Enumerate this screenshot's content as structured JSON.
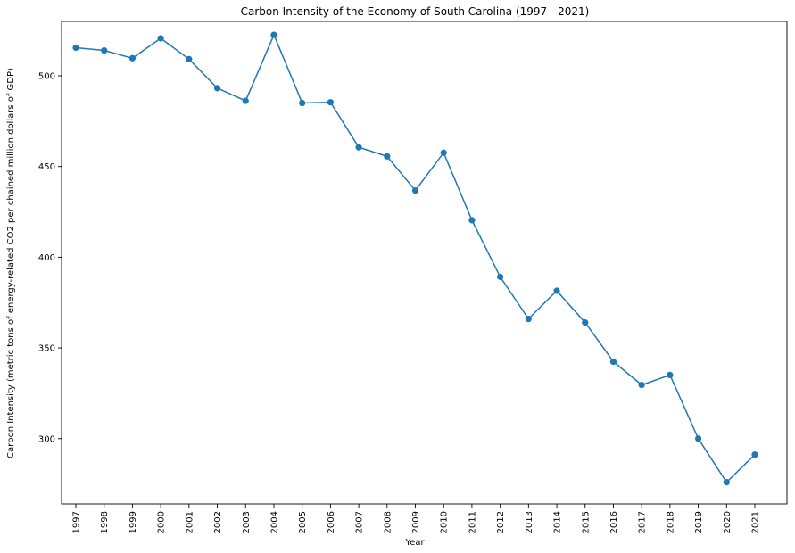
{
  "chart_data": {
    "type": "line",
    "title": "Carbon Intensity of the Economy of South Carolina (1997 - 2021)",
    "xlabel": "Year",
    "ylabel": "Carbon Intensity (metric tons of energy-related CO2 per chained million dollars of GDP)",
    "x": [
      "1997",
      "1998",
      "1999",
      "2000",
      "2001",
      "2002",
      "2003",
      "2004",
      "2005",
      "2006",
      "2007",
      "2008",
      "2009",
      "2010",
      "2011",
      "2012",
      "2013",
      "2014",
      "2015",
      "2016",
      "2017",
      "2018",
      "2019",
      "2020",
      "2021"
    ],
    "series": [
      {
        "values": [
          515.5,
          514.0,
          509.7,
          520.7,
          509.2,
          493.2,
          486.2,
          522.6,
          485.0,
          485.4,
          460.6,
          455.6,
          436.8,
          457.6,
          420.4,
          389.2,
          366.0,
          381.5,
          364.0,
          342.4,
          329.6,
          335.1,
          300.0,
          276.0,
          291.2
        ],
        "color": "#1f77b4"
      }
    ],
    "yticks": [
      300,
      350,
      400,
      450,
      500
    ],
    "ylim": [
      264,
      530
    ],
    "grid": false,
    "marker": "circle"
  }
}
